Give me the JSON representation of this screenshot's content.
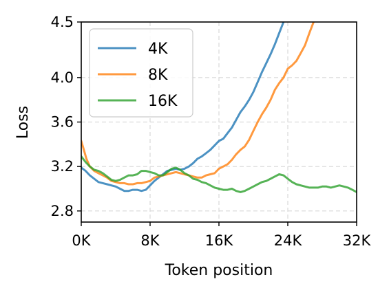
{
  "chart_data": {
    "type": "line",
    "title": "",
    "xlabel": "Token position",
    "ylabel": "Loss",
    "xlim": [
      0,
      32000
    ],
    "ylim": [
      2.7,
      4.5
    ],
    "x_ticks": [
      {
        "value": 0,
        "label": "0K"
      },
      {
        "value": 8000,
        "label": "8K"
      },
      {
        "value": 16000,
        "label": "16K"
      },
      {
        "value": 24000,
        "label": "24K"
      },
      {
        "value": 32000,
        "label": "32K"
      }
    ],
    "y_ticks": [
      {
        "value": 2.8,
        "label": "2.8"
      },
      {
        "value": 3.2,
        "label": "3.2"
      },
      {
        "value": 3.6,
        "label": "3.6"
      },
      {
        "value": 4.0,
        "label": "4.0"
      },
      {
        "value": 4.5,
        "label": "4.5"
      }
    ],
    "grid": true,
    "legend_position": "top-left",
    "series": [
      {
        "name": "4K",
        "color": "#1f77b4",
        "points": [
          [
            0,
            3.19
          ],
          [
            500,
            3.16
          ],
          [
            1000,
            3.12
          ],
          [
            1500,
            3.09
          ],
          [
            2000,
            3.06
          ],
          [
            2500,
            3.05
          ],
          [
            3000,
            3.04
          ],
          [
            3500,
            3.03
          ],
          [
            4000,
            3.02
          ],
          [
            4500,
            3.0
          ],
          [
            5000,
            2.98
          ],
          [
            5500,
            2.98
          ],
          [
            6000,
            2.99
          ],
          [
            6500,
            2.99
          ],
          [
            7000,
            2.98
          ],
          [
            7500,
            2.99
          ],
          [
            8000,
            3.03
          ],
          [
            8500,
            3.07
          ],
          [
            9000,
            3.1
          ],
          [
            9500,
            3.13
          ],
          [
            10000,
            3.16
          ],
          [
            10500,
            3.17
          ],
          [
            11000,
            3.18
          ],
          [
            11500,
            3.17
          ],
          [
            12000,
            3.18
          ],
          [
            12500,
            3.2
          ],
          [
            13000,
            3.23
          ],
          [
            13500,
            3.27
          ],
          [
            14000,
            3.29
          ],
          [
            14500,
            3.32
          ],
          [
            15000,
            3.35
          ],
          [
            15500,
            3.39
          ],
          [
            16000,
            3.43
          ],
          [
            16500,
            3.45
          ],
          [
            17000,
            3.5
          ],
          [
            17500,
            3.55
          ],
          [
            18000,
            3.62
          ],
          [
            18500,
            3.69
          ],
          [
            19000,
            3.74
          ],
          [
            19500,
            3.8
          ],
          [
            20000,
            3.87
          ],
          [
            20500,
            3.96
          ],
          [
            21000,
            4.05
          ],
          [
            21500,
            4.13
          ],
          [
            22000,
            4.21
          ],
          [
            22500,
            4.3
          ],
          [
            23000,
            4.4
          ],
          [
            23500,
            4.5
          ]
        ]
      },
      {
        "name": "8K",
        "color": "#ff7f0e",
        "points": [
          [
            0,
            3.43
          ],
          [
            300,
            3.35
          ],
          [
            600,
            3.27
          ],
          [
            1000,
            3.2
          ],
          [
            1500,
            3.16
          ],
          [
            2000,
            3.14
          ],
          [
            2500,
            3.12
          ],
          [
            3000,
            3.1
          ],
          [
            3500,
            3.07
          ],
          [
            4000,
            3.06
          ],
          [
            4500,
            3.05
          ],
          [
            5000,
            3.05
          ],
          [
            5500,
            3.04
          ],
          [
            6000,
            3.04
          ],
          [
            6500,
            3.05
          ],
          [
            7000,
            3.05
          ],
          [
            7500,
            3.06
          ],
          [
            8000,
            3.07
          ],
          [
            8500,
            3.1
          ],
          [
            9000,
            3.11
          ],
          [
            9500,
            3.12
          ],
          [
            10000,
            3.13
          ],
          [
            10500,
            3.14
          ],
          [
            11000,
            3.15
          ],
          [
            11500,
            3.14
          ],
          [
            12000,
            3.13
          ],
          [
            12500,
            3.12
          ],
          [
            13000,
            3.11
          ],
          [
            13500,
            3.1
          ],
          [
            14000,
            3.1
          ],
          [
            14500,
            3.12
          ],
          [
            15000,
            3.13
          ],
          [
            15500,
            3.14
          ],
          [
            16000,
            3.18
          ],
          [
            16500,
            3.2
          ],
          [
            17000,
            3.22
          ],
          [
            17500,
            3.26
          ],
          [
            18000,
            3.31
          ],
          [
            18500,
            3.35
          ],
          [
            19000,
            3.38
          ],
          [
            19500,
            3.44
          ],
          [
            20000,
            3.52
          ],
          [
            20500,
            3.6
          ],
          [
            21000,
            3.67
          ],
          [
            21500,
            3.73
          ],
          [
            22000,
            3.8
          ],
          [
            22500,
            3.89
          ],
          [
            23000,
            3.95
          ],
          [
            23500,
            4.0
          ],
          [
            24000,
            4.08
          ],
          [
            24500,
            4.11
          ],
          [
            25000,
            4.15
          ],
          [
            25500,
            4.22
          ],
          [
            26000,
            4.29
          ],
          [
            26500,
            4.4
          ],
          [
            27000,
            4.5
          ]
        ]
      },
      {
        "name": "16K",
        "color": "#2ca02c",
        "points": [
          [
            0,
            3.29
          ],
          [
            500,
            3.24
          ],
          [
            1000,
            3.2
          ],
          [
            1500,
            3.17
          ],
          [
            2000,
            3.16
          ],
          [
            2500,
            3.14
          ],
          [
            3000,
            3.11
          ],
          [
            3500,
            3.08
          ],
          [
            4000,
            3.07
          ],
          [
            4500,
            3.08
          ],
          [
            5000,
            3.1
          ],
          [
            5500,
            3.12
          ],
          [
            6000,
            3.12
          ],
          [
            6500,
            3.13
          ],
          [
            7000,
            3.16
          ],
          [
            7500,
            3.16
          ],
          [
            8000,
            3.15
          ],
          [
            8500,
            3.14
          ],
          [
            9000,
            3.12
          ],
          [
            9500,
            3.12
          ],
          [
            10000,
            3.15
          ],
          [
            10500,
            3.18
          ],
          [
            11000,
            3.19
          ],
          [
            11500,
            3.17
          ],
          [
            12000,
            3.14
          ],
          [
            12500,
            3.12
          ],
          [
            13000,
            3.09
          ],
          [
            13500,
            3.08
          ],
          [
            14000,
            3.06
          ],
          [
            14500,
            3.05
          ],
          [
            15000,
            3.03
          ],
          [
            15500,
            3.01
          ],
          [
            16000,
            3.0
          ],
          [
            16500,
            2.99
          ],
          [
            17000,
            2.99
          ],
          [
            17500,
            3.0
          ],
          [
            18000,
            2.98
          ],
          [
            18500,
            2.97
          ],
          [
            19000,
            2.98
          ],
          [
            19500,
            3.0
          ],
          [
            20000,
            3.02
          ],
          [
            20500,
            3.04
          ],
          [
            21000,
            3.06
          ],
          [
            21500,
            3.07
          ],
          [
            22000,
            3.09
          ],
          [
            22500,
            3.11
          ],
          [
            23000,
            3.13
          ],
          [
            23500,
            3.12
          ],
          [
            24000,
            3.09
          ],
          [
            24500,
            3.06
          ],
          [
            25000,
            3.04
          ],
          [
            25500,
            3.03
          ],
          [
            26000,
            3.02
          ],
          [
            26500,
            3.01
          ],
          [
            27000,
            3.01
          ],
          [
            27500,
            3.01
          ],
          [
            28000,
            3.02
          ],
          [
            28500,
            3.02
          ],
          [
            29000,
            3.01
          ],
          [
            29500,
            3.02
          ],
          [
            30000,
            3.03
          ],
          [
            30500,
            3.02
          ],
          [
            31000,
            3.01
          ],
          [
            31500,
            2.99
          ],
          [
            32000,
            2.97
          ]
        ]
      }
    ]
  }
}
